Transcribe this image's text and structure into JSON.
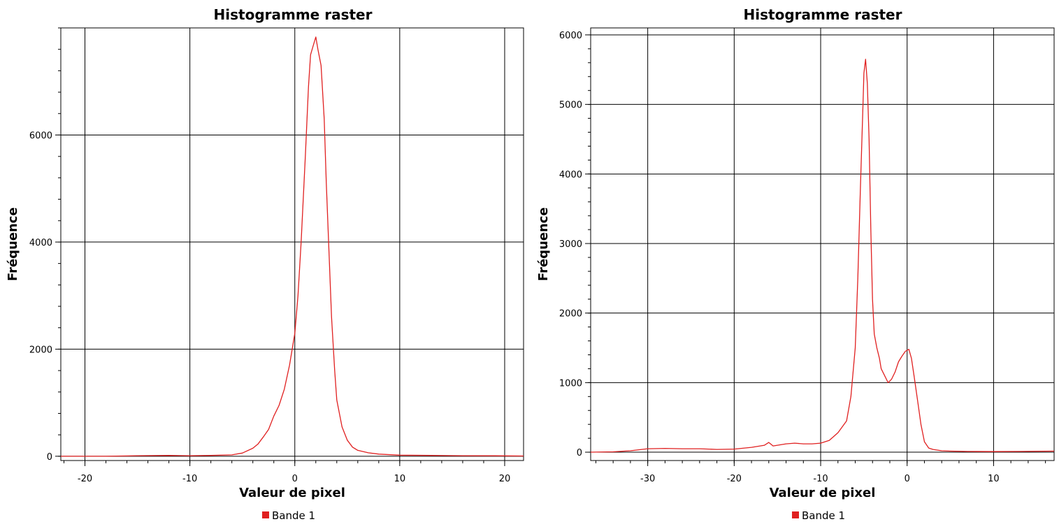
{
  "chart_data": [
    {
      "type": "line",
      "title": "Histogramme raster",
      "xlabel": "Valeur de pixel",
      "ylabel": "Fréquence",
      "xlim": [
        -22.3,
        21.8
      ],
      "ylim": [
        -80,
        8000
      ],
      "xticks": [
        -20,
        -10,
        0,
        10,
        20
      ],
      "yticks": [
        0,
        2000,
        4000,
        6000
      ],
      "grid": true,
      "legend_position": "bottom-center",
      "series": [
        {
          "name": "Bande 1",
          "color": "#e02020",
          "x": [
            -22.3,
            -18,
            -15,
            -12,
            -10,
            -8,
            -6,
            -5,
            -4,
            -3.5,
            -3,
            -2.5,
            -2,
            -1.5,
            -1,
            -0.5,
            0,
            0.3,
            0.6,
            1.0,
            1.3,
            1.5,
            1.8,
            2.0,
            2.2,
            2.5,
            2.8,
            3.0,
            3.3,
            3.5,
            3.8,
            4.0,
            4.5,
            5.0,
            5.5,
            6,
            7,
            8,
            10,
            13,
            16,
            19,
            21.8
          ],
          "y": [
            0,
            0,
            10,
            15,
            10,
            15,
            25,
            60,
            150,
            230,
            360,
            500,
            750,
            950,
            1250,
            1700,
            2300,
            3000,
            4000,
            5600,
            6900,
            7500,
            7700,
            7830,
            7600,
            7300,
            6300,
            5100,
            3600,
            2600,
            1600,
            1050,
            550,
            300,
            170,
            110,
            65,
            40,
            20,
            15,
            10,
            8,
            5
          ]
        }
      ]
    },
    {
      "type": "line",
      "title": "Histogramme raster",
      "xlabel": "Valeur de pixel",
      "ylabel": "Fréquence",
      "xlim": [
        -36.6,
        17
      ],
      "ylim": [
        -120,
        6100
      ],
      "xticks": [
        -30,
        -20,
        -10,
        0,
        10
      ],
      "yticks": [
        0,
        1000,
        2000,
        3000,
        4000,
        5000,
        6000
      ],
      "grid": true,
      "legend_position": "bottom-center",
      "series": [
        {
          "name": "Bande 1",
          "color": "#e02020",
          "x": [
            -36.6,
            -34,
            -32,
            -30,
            -28,
            -26,
            -24,
            -22,
            -20,
            -18,
            -16.5,
            -16,
            -15.5,
            -14,
            -13,
            -12,
            -11,
            -10,
            -9,
            -8,
            -7,
            -6.5,
            -6,
            -5.7,
            -5.4,
            -5.1,
            -5.0,
            -4.8,
            -4.6,
            -4.4,
            -4.2,
            -4.0,
            -3.8,
            -3.5,
            -3.2,
            -3.0,
            -2.6,
            -2.2,
            -1.8,
            -1.4,
            -1.0,
            -0.6,
            -0.2,
            0.2,
            0.5,
            0.8,
            1.2,
            1.6,
            2.0,
            2.5,
            3,
            4,
            5,
            7,
            10,
            13,
            17
          ],
          "y": [
            0,
            5,
            20,
            50,
            55,
            50,
            50,
            40,
            45,
            70,
            100,
            140,
            90,
            120,
            130,
            120,
            120,
            130,
            170,
            280,
            450,
            800,
            1500,
            2500,
            3800,
            5000,
            5450,
            5650,
            5300,
            4500,
            3200,
            2200,
            1700,
            1500,
            1350,
            1200,
            1100,
            1000,
            1050,
            1150,
            1300,
            1380,
            1450,
            1480,
            1350,
            1100,
            750,
            400,
            150,
            60,
            40,
            20,
            15,
            10,
            8,
            10,
            15
          ]
        }
      ]
    }
  ]
}
